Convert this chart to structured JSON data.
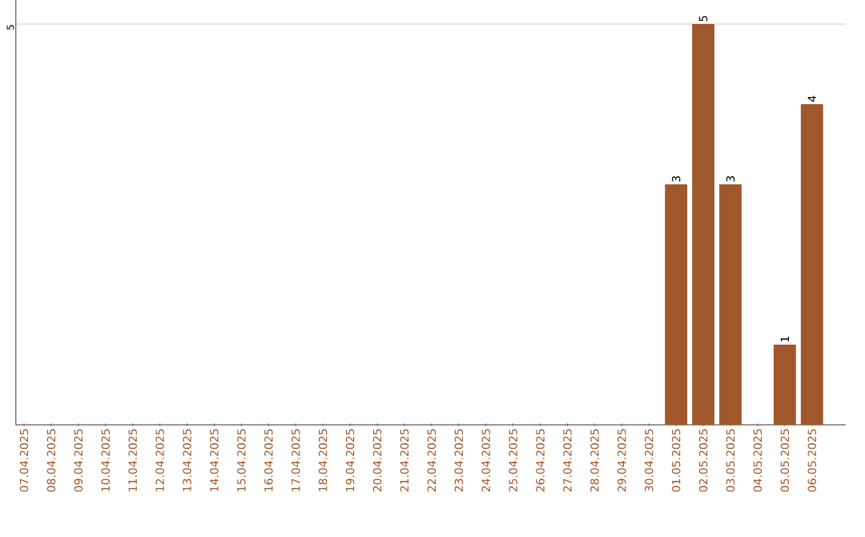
{
  "chart_data": {
    "type": "bar",
    "ylim": [
      0,
      5.3
    ],
    "categories": [
      "07.04.2025",
      "08.04.2025",
      "09.04.2025",
      "10.04.2025",
      "11.04.2025",
      "12.04.2025",
      "13.04.2025",
      "14.04.2025",
      "15.04.2025",
      "16.04.2025",
      "17.04.2025",
      "18.04.2025",
      "19.04.2025",
      "20.04.2025",
      "21.04.2025",
      "22.04.2025",
      "23.04.2025",
      "24.04.2025",
      "25.04.2025",
      "26.04.2025",
      "27.04.2025",
      "28.04.2025",
      "29.04.2025",
      "30.04.2025",
      "01.05.2025",
      "02.05.2025",
      "03.05.2025",
      "04.05.2025",
      "05.05.2025",
      "06.05.2025"
    ],
    "values": [
      null,
      null,
      null,
      null,
      null,
      null,
      null,
      null,
      null,
      null,
      null,
      null,
      null,
      null,
      null,
      null,
      null,
      null,
      null,
      null,
      null,
      null,
      null,
      null,
      3,
      5,
      3,
      null,
      1,
      4
    ],
    "value_labels": [
      null,
      null,
      null,
      null,
      null,
      null,
      null,
      null,
      null,
      null,
      null,
      null,
      null,
      null,
      null,
      null,
      null,
      null,
      null,
      null,
      null,
      null,
      null,
      null,
      "3",
      "5",
      "3",
      null,
      "1",
      "4"
    ],
    "color": "#a0572b",
    "ref_lines": [
      {
        "axis": "y",
        "value": 5,
        "label": "5",
        "color": "#cccccc"
      }
    ]
  }
}
